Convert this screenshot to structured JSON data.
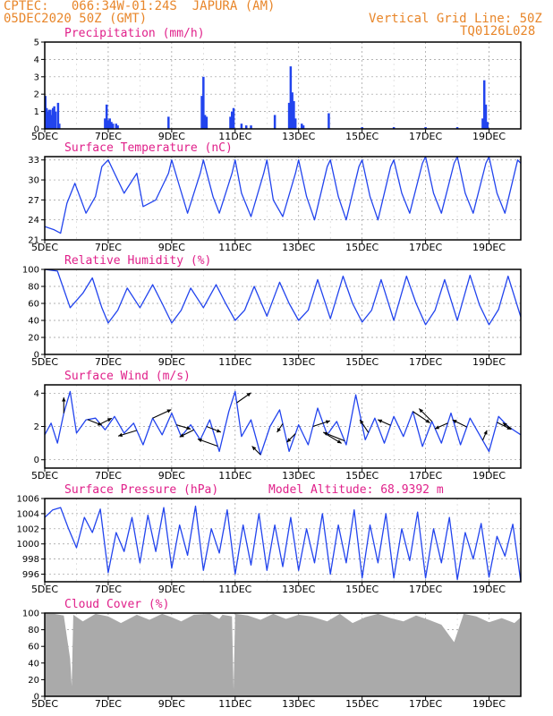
{
  "header": {
    "left_line1": "CPTEC:   066:34W-01:24S  JAPURA (AM)",
    "left_line2": "05DEC2020 50Z (GMT)",
    "right_line1": "Vertical Grid Line: 50Z",
    "right_line2": "TQ0126L028"
  },
  "x_axis": {
    "labels": [
      "5DEC",
      "7DEC",
      "9DEC",
      "11DEC",
      "13DEC",
      "15DEC",
      "17DEC",
      "19DEC"
    ],
    "label_days": [
      5,
      7,
      9,
      11,
      13,
      15,
      17,
      19
    ],
    "range_days": [
      5,
      20
    ]
  },
  "colors": {
    "line": "#2244ee",
    "bar": "#2244ee",
    "cloud": "#aaaaaa",
    "title": "#e0208a",
    "header": "#e8862a",
    "grid": "#999999"
  },
  "chart_data": [
    {
      "type": "bar",
      "title": "Precipitation (mm/h)",
      "ylim": [
        0,
        5
      ],
      "yticks": [
        0,
        1,
        2,
        3,
        4,
        5
      ],
      "x_days": [
        5.02,
        5.06,
        5.1,
        5.14,
        5.18,
        5.22,
        5.26,
        5.3,
        5.34,
        5.42,
        5.46,
        6.9,
        6.95,
        7.0,
        7.05,
        7.1,
        7.15,
        7.25,
        7.3,
        8.9,
        9.95,
        10.0,
        10.05,
        10.1,
        10.85,
        10.9,
        10.95,
        11.2,
        11.35,
        11.5,
        12.25,
        12.7,
        12.75,
        12.8,
        12.85,
        12.9,
        13.1,
        13.15,
        13.95,
        15.0,
        16.0,
        17.0,
        18.0,
        18.8,
        18.85,
        18.9,
        18.95
      ],
      "values": [
        1.9,
        1.2,
        1.0,
        1.1,
        1.1,
        0.8,
        1.2,
        1.3,
        1.0,
        1.5,
        0.3,
        0.6,
        1.4,
        0.5,
        0.6,
        0.4,
        0.3,
        0.3,
        0.2,
        0.7,
        1.9,
        3.0,
        0.8,
        0.7,
        0.7,
        1.0,
        1.2,
        0.3,
        0.2,
        0.2,
        0.8,
        1.5,
        3.6,
        2.1,
        1.6,
        0.6,
        0.3,
        0.2,
        0.9,
        0.1,
        0.1,
        0.1,
        0.1,
        0.6,
        2.8,
        1.4,
        0.4
      ]
    },
    {
      "type": "line",
      "title": "Surface Temperature (nC)",
      "ylim": [
        21,
        33.5
      ],
      "yticks": [
        21,
        24,
        27,
        30,
        33
      ],
      "x": [
        5.0,
        5.3,
        5.5,
        5.7,
        5.95,
        6.3,
        6.6,
        6.8,
        7.0,
        7.2,
        7.5,
        7.9,
        8.1,
        8.5,
        8.9,
        9.0,
        9.25,
        9.5,
        9.9,
        10.0,
        10.3,
        10.5,
        10.9,
        11.0,
        11.2,
        11.5,
        11.9,
        12.0,
        12.2,
        12.5,
        12.9,
        13.0,
        13.25,
        13.5,
        13.9,
        14.0,
        14.25,
        14.5,
        14.9,
        15.0,
        15.25,
        15.5,
        15.9,
        16.0,
        16.25,
        16.5,
        16.9,
        17.0,
        17.25,
        17.5,
        17.9,
        18.0,
        18.25,
        18.5,
        18.9,
        19.0,
        19.25,
        19.5,
        19.9,
        20.0
      ],
      "values": [
        23,
        22.5,
        22,
        26.5,
        29.5,
        25,
        27.5,
        32,
        33,
        31,
        28,
        31,
        26,
        27,
        31,
        33,
        29,
        25,
        31,
        33,
        27.5,
        25,
        31,
        33,
        28,
        24.5,
        31,
        33,
        27,
        24.5,
        31,
        33,
        27.5,
        24,
        32,
        33,
        27.5,
        24,
        32,
        33,
        27.5,
        24,
        32,
        33,
        28,
        25,
        32.5,
        33.5,
        28,
        25,
        32.5,
        33.5,
        28,
        25,
        32.5,
        33.5,
        28,
        25,
        33,
        32.5
      ]
    },
    {
      "type": "line",
      "title": "Relative Humidity (%)",
      "ylim": [
        0,
        100
      ],
      "yticks": [
        0,
        20,
        40,
        60,
        80,
        100
      ],
      "x": [
        5.0,
        5.4,
        5.8,
        6.2,
        6.5,
        6.8,
        7.0,
        7.3,
        7.6,
        8.0,
        8.4,
        8.7,
        9.0,
        9.3,
        9.6,
        10.0,
        10.4,
        10.7,
        11.0,
        11.3,
        11.6,
        12.0,
        12.4,
        12.7,
        13.0,
        13.3,
        13.6,
        14.0,
        14.4,
        14.7,
        15.0,
        15.3,
        15.6,
        16.0,
        16.4,
        16.7,
        17.0,
        17.3,
        17.6,
        18.0,
        18.4,
        18.7,
        19.0,
        19.3,
        19.6,
        20.0
      ],
      "values": [
        100,
        98,
        55,
        72,
        90,
        55,
        37,
        52,
        78,
        55,
        82,
        60,
        37,
        52,
        78,
        55,
        82,
        60,
        40,
        52,
        80,
        45,
        85,
        60,
        40,
        52,
        88,
        42,
        92,
        60,
        38,
        52,
        88,
        40,
        92,
        60,
        35,
        52,
        88,
        40,
        93,
        58,
        35,
        53,
        92,
        44
      ]
    },
    {
      "type": "line",
      "title": "Surface Wind (m/s)",
      "ylim": [
        -0.5,
        4.5
      ],
      "yticks": [
        0,
        2,
        4
      ],
      "x": [
        5.0,
        5.2,
        5.4,
        5.6,
        5.8,
        6.0,
        6.3,
        6.6,
        6.9,
        7.2,
        7.5,
        7.8,
        8.1,
        8.4,
        8.7,
        9.0,
        9.3,
        9.6,
        9.9,
        10.2,
        10.5,
        10.8,
        11.0,
        11.2,
        11.5,
        11.8,
        12.1,
        12.4,
        12.7,
        13.0,
        13.3,
        13.6,
        13.9,
        14.2,
        14.5,
        14.8,
        15.1,
        15.4,
        15.7,
        16.0,
        16.3,
        16.6,
        16.9,
        17.2,
        17.5,
        17.8,
        18.1,
        18.4,
        18.7,
        19.0,
        19.3,
        19.6,
        20.0
      ],
      "values": [
        1.5,
        2.2,
        1.0,
        2.8,
        4.1,
        1.6,
        2.4,
        2.5,
        1.8,
        2.6,
        1.6,
        2.2,
        0.9,
        2.5,
        1.5,
        2.8,
        1.4,
        2.1,
        1.2,
        2.4,
        0.5,
        2.9,
        4.1,
        1.4,
        2.4,
        0.3,
        2.0,
        3.0,
        0.5,
        2.1,
        0.9,
        3.1,
        1.5,
        2.3,
        0.9,
        3.9,
        1.2,
        2.5,
        1.0,
        2.6,
        1.4,
        2.9,
        0.8,
        2.3,
        1.0,
        2.8,
        0.9,
        2.5,
        1.5,
        0.5,
        2.6,
        2.0,
        1.5
      ],
      "arrow_x": [
        5.6,
        6.35,
        6.75,
        7.9,
        8.4,
        9.15,
        9.7,
        10.1,
        10.45,
        11.05,
        11.8,
        12.5,
        12.9,
        13.45,
        13.9,
        14.45,
        15.2,
        15.9,
        16.6,
        17.2,
        17.7,
        18.3,
        18.8,
        19.25,
        19.7
      ],
      "arrow_u": [
        0,
        1.0,
        0.8,
        -1.3,
        1.3,
        1.0,
        -1.0,
        1.0,
        -1.4,
        1.0,
        -0.6,
        -0.4,
        -0.6,
        1.2,
        1.0,
        -1.5,
        -0.6,
        -0.9,
        1.2,
        -0.9,
        -0.9,
        -1.0,
        0.3,
        1.0,
        -0.6
      ],
      "arrow_v": [
        1.1,
        -0.4,
        0.4,
        -0.4,
        0.6,
        -0.3,
        -0.5,
        -0.4,
        0.5,
        0.7,
        0.6,
        -0.6,
        -0.6,
        0.4,
        -0.6,
        0.6,
        0.9,
        0.4,
        -0.8,
        0.9,
        -0.4,
        0.5,
        0.7,
        -0.5,
        0.4
      ]
    },
    {
      "type": "line",
      "title": "Surface Pressure (hPa)",
      "annotation": "Model Altitude: 68.9392 m",
      "ylim": [
        995,
        1006
      ],
      "yticks": [
        996,
        998,
        1000,
        1002,
        1004,
        1006
      ],
      "x": [
        5.0,
        5.25,
        5.5,
        5.75,
        6.0,
        6.25,
        6.5,
        6.75,
        7.0,
        7.25,
        7.5,
        7.75,
        8.0,
        8.25,
        8.5,
        8.75,
        9.0,
        9.25,
        9.5,
        9.75,
        10.0,
        10.25,
        10.5,
        10.75,
        11.0,
        11.25,
        11.5,
        11.75,
        12.0,
        12.25,
        12.5,
        12.75,
        13.0,
        13.25,
        13.5,
        13.75,
        14.0,
        14.25,
        14.5,
        14.75,
        15.0,
        15.25,
        15.5,
        15.75,
        16.0,
        16.25,
        16.5,
        16.75,
        17.0,
        17.25,
        17.5,
        17.75,
        18.0,
        18.25,
        18.5,
        18.75,
        19.0,
        19.25,
        19.5,
        19.75,
        20.0
      ],
      "values": [
        1003.5,
        1004.5,
        1004.8,
        1002,
        999.5,
        1003.5,
        1001.5,
        1004.6,
        996.2,
        1001.5,
        999,
        1003.5,
        997.5,
        1003.8,
        999,
        1004.8,
        996.8,
        1002.5,
        998.5,
        1005,
        996.5,
        1002,
        998.8,
        1004.5,
        996,
        1002.5,
        997.2,
        1004,
        996.5,
        1002.5,
        997,
        1003.5,
        996.5,
        1002,
        997.5,
        1004,
        996,
        1002.5,
        997.5,
        1004.5,
        995.5,
        1002.5,
        997.5,
        1004,
        995.5,
        1002,
        997.8,
        1004.2,
        995.5,
        1002,
        997.5,
        1003.5,
        995.3,
        1001.5,
        998,
        1002.7,
        995.6,
        1001,
        998.4,
        1002.6,
        995
      ]
    },
    {
      "type": "area",
      "title": "Cloud Cover (%)",
      "ylim": [
        0,
        100
      ],
      "yticks": [
        0,
        20,
        40,
        60,
        80,
        100
      ],
      "x": [
        5.0,
        5.3,
        5.6,
        5.8,
        5.85,
        5.9,
        6.2,
        6.6,
        7.0,
        7.4,
        7.9,
        8.3,
        8.7,
        9.0,
        9.3,
        9.7,
        10.2,
        10.5,
        10.6,
        10.9,
        10.95,
        11.0,
        11.4,
        11.8,
        12.2,
        12.6,
        13.0,
        13.4,
        13.9,
        14.3,
        14.7,
        15.1,
        15.5,
        15.9,
        16.3,
        16.7,
        17.1,
        17.5,
        17.9,
        18.2,
        18.6,
        19.0,
        19.4,
        19.8,
        20.0
      ],
      "values": [
        99,
        99,
        97,
        45,
        12,
        98,
        90,
        99,
        96,
        88,
        98,
        92,
        99,
        95,
        90,
        98,
        99,
        93,
        98,
        96,
        8,
        99,
        97,
        92,
        99,
        93,
        98,
        96,
        90,
        99,
        88,
        95,
        99,
        94,
        90,
        97,
        92,
        86,
        65,
        99,
        96,
        89,
        94,
        88,
        95
      ]
    }
  ]
}
